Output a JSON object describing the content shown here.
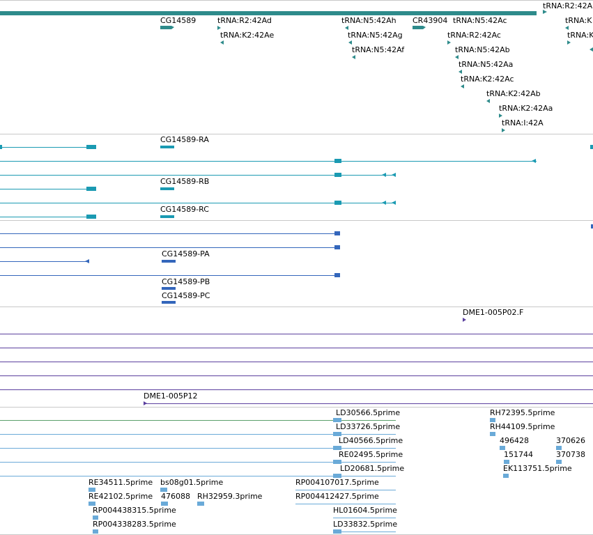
{
  "colors": {
    "gene": "#2e8b8b",
    "transcript": "#1a9ab2",
    "protein": "#3366bb",
    "purple": "#5b3f9e",
    "green": "#5aa06a",
    "est": "#6aaad8",
    "separator": "#c8c8c8"
  },
  "genes": {
    "top_right": "tRNA:R2:42A",
    "cg14589": "CG14589",
    "trna_r2_42ad": "tRNA:R2:42Ad",
    "trna_k2_42ae": "tRNA:K2:42Ae",
    "trna_n5_42ah": "tRNA:N5:42Ah",
    "trna_n5_42ag": "tRNA:N5:42Ag",
    "trna_n5_42af": "tRNA:N5:42Af",
    "cr43904": "CR43904",
    "trna_n5_42ac": "tRNA:N5:42Ac",
    "trna_r2_42ac": "tRNA:R2:42Ac",
    "trna_n5_42ab": "tRNA:N5:42Ab",
    "trna_n5_42aa": "tRNA:N5:42Aa",
    "trna_k2_42ac": "tRNA:K2:42Ac",
    "trna_k2_42ab": "tRNA:K2:42Ab",
    "trna_k2_42aa": "tRNA:K2:42Aa",
    "trna_i_42a": "tRNA:I:42A",
    "trna_k_edge1": "tRNA:K",
    "trna_k_edge2": "tRNA:K"
  },
  "transcripts": {
    "ra": "CG14589-RA",
    "rb": "CG14589-RB",
    "rc": "CG14589-RC"
  },
  "proteins": {
    "pa": "CG14589-PA",
    "pb": "CG14589-PB",
    "pc": "CG14589-PC"
  },
  "alignments": {
    "dme1_005p02": "DME1-005P02.F",
    "dme1_005p12": "DME1-005P12"
  },
  "ests": {
    "ld30566": "LD30566.5prime",
    "ld33726": "LD33726.5prime",
    "ld40566": "LD40566.5prime",
    "re02495": "RE02495.5prime",
    "ld20681": "LD20681.5prime",
    "rh72395": "RH72395.5prime",
    "rh44109": "RH44109.5prime",
    "n496428": "496428",
    "n370626": "370626",
    "n151744": "151744",
    "n370738": "370738",
    "ek113751": "EK113751.5prime",
    "re34511": "RE34511.5prime",
    "bs08g01": "bs08g01.5prime",
    "re42102": "RE42102.5prime",
    "n476088": "476088",
    "rh32959": "RH32959.3prime",
    "rp004107017": "RP004107017.5prime",
    "rp004412427": "RP004412427.5prime",
    "rp004438315": "RP004438315.5prime",
    "hl01604": "HL01604.5prime",
    "rp004338283": "RP004338283.5prime",
    "ld33832": "LD33832.5prime"
  }
}
